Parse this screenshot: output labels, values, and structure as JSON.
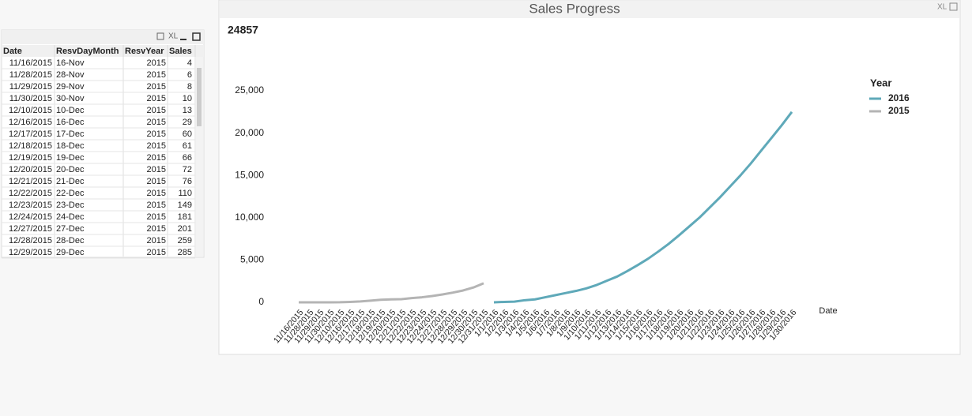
{
  "toolbar": {
    "table_xl": "XL",
    "chart_xl": "XL"
  },
  "table": {
    "columns": [
      "Date",
      "ResvDayMonth",
      "ResvYear",
      "Sales"
    ],
    "rows": [
      [
        "11/16/2015",
        "16-Nov",
        "2015",
        "4"
      ],
      [
        "11/28/2015",
        "28-Nov",
        "2015",
        "6"
      ],
      [
        "11/29/2015",
        "29-Nov",
        "2015",
        "8"
      ],
      [
        "11/30/2015",
        "30-Nov",
        "2015",
        "10"
      ],
      [
        "12/10/2015",
        "10-Dec",
        "2015",
        "13"
      ],
      [
        "12/16/2015",
        "16-Dec",
        "2015",
        "29"
      ],
      [
        "12/17/2015",
        "17-Dec",
        "2015",
        "60"
      ],
      [
        "12/18/2015",
        "18-Dec",
        "2015",
        "61"
      ],
      [
        "12/19/2015",
        "19-Dec",
        "2015",
        "66"
      ],
      [
        "12/20/2015",
        "20-Dec",
        "2015",
        "72"
      ],
      [
        "12/21/2015",
        "21-Dec",
        "2015",
        "76"
      ],
      [
        "12/22/2015",
        "22-Dec",
        "2015",
        "110"
      ],
      [
        "12/23/2015",
        "23-Dec",
        "2015",
        "149"
      ],
      [
        "12/24/2015",
        "24-Dec",
        "2015",
        "181"
      ],
      [
        "12/27/2015",
        "27-Dec",
        "2015",
        "201"
      ],
      [
        "12/28/2015",
        "28-Dec",
        "2015",
        "259"
      ],
      [
        "12/29/2015",
        "29-Dec",
        "2015",
        "285"
      ]
    ]
  },
  "chart_data": {
    "type": "line",
    "title": "Sales Progress",
    "annotations": [
      "24857"
    ],
    "x_label": "Date",
    "legend_title": "Year",
    "legend": "top-right",
    "categories": [
      "11/16/2015",
      "11/28/2015",
      "11/29/2015",
      "11/30/2015",
      "12/10/2015",
      "12/16/2015",
      "12/17/2015",
      "12/18/2015",
      "12/19/2015",
      "12/20/2015",
      "12/21/2015",
      "12/22/2015",
      "12/23/2015",
      "12/24/2015",
      "12/27/2015",
      "12/28/2015",
      "12/29/2015",
      "12/30/2015",
      "12/31/2015",
      "1/1/2016",
      "1/2/2016",
      "1/3/2016",
      "1/4/2016",
      "1/5/2016",
      "1/6/2016",
      "1/7/2016",
      "1/8/2016",
      "1/9/2016",
      "1/10/2016",
      "1/11/2016",
      "1/12/2016",
      "1/13/2016",
      "1/14/2016",
      "1/15/2016",
      "1/16/2016",
      "1/17/2016",
      "1/18/2016",
      "1/19/2016",
      "1/20/2016",
      "1/21/2016",
      "1/22/2016",
      "1/23/2016",
      "1/24/2016",
      "1/25/2016",
      "1/26/2016",
      "1/27/2016",
      "1/28/2016",
      "1/29/2016",
      "1/30/2016"
    ],
    "series": [
      {
        "name": "2016",
        "color": "#5fa9b9",
        "values": [
          null,
          null,
          null,
          null,
          null,
          null,
          null,
          null,
          null,
          null,
          null,
          null,
          null,
          null,
          null,
          null,
          null,
          null,
          null,
          0,
          50,
          80,
          250,
          350,
          600,
          850,
          1100,
          1350,
          1650,
          2050,
          2550,
          3050,
          3700,
          4400,
          5150,
          6000,
          6900,
          7900,
          8950,
          10000,
          11200,
          12400,
          13700,
          15000,
          16400,
          17900,
          19400,
          20900,
          22500
        ]
      },
      {
        "name": "2015",
        "color": "#b4b4b4",
        "values": [
          0,
          0,
          0,
          0,
          10,
          50,
          100,
          200,
          300,
          350,
          370,
          500,
          600,
          750,
          930,
          1150,
          1400,
          1750,
          2250,
          null,
          null,
          null,
          null,
          null,
          null,
          null,
          null,
          null,
          null,
          null,
          null,
          null,
          null,
          null,
          null,
          null,
          null,
          null,
          null,
          null,
          null,
          null,
          null,
          null,
          null,
          null,
          null,
          null,
          null
        ]
      }
    ],
    "ylim": [
      0,
      25000
    ],
    "yticks": [
      0,
      {
        "value": 5000,
        "label": "5,000"
      },
      {
        "value": 10000,
        "label": "10,000"
      },
      {
        "value": 15000,
        "label": "15,000"
      },
      {
        "value": 20000,
        "label": "20,000"
      },
      {
        "value": 25000,
        "label": "25,000"
      }
    ],
    "grid": false
  }
}
